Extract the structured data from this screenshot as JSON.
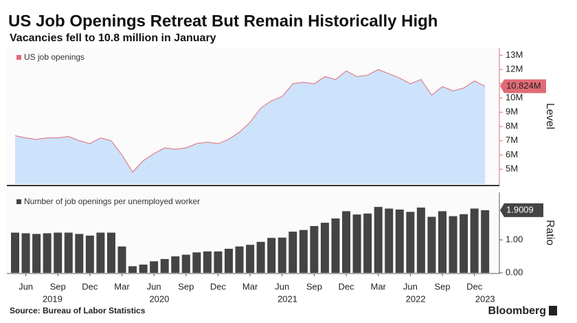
{
  "chart_data": [
    {
      "type": "area",
      "title": "US Job Openings Retreat But Remain Historically High",
      "subtitle": "Vacancies fell to 10.8 million in January",
      "axis_label": "Level",
      "x": [
        "2019-05",
        "2019-06",
        "2019-07",
        "2019-08",
        "2019-09",
        "2019-10",
        "2019-11",
        "2019-12",
        "2020-01",
        "2020-02",
        "2020-03",
        "2020-04",
        "2020-05",
        "2020-06",
        "2020-07",
        "2020-08",
        "2020-09",
        "2020-10",
        "2020-11",
        "2020-12",
        "2021-01",
        "2021-02",
        "2021-03",
        "2021-04",
        "2021-05",
        "2021-06",
        "2021-07",
        "2021-08",
        "2021-09",
        "2021-10",
        "2021-11",
        "2021-12",
        "2022-01",
        "2022-02",
        "2022-03",
        "2022-04",
        "2022-05",
        "2022-06",
        "2022-07",
        "2022-08",
        "2022-09",
        "2022-10",
        "2022-11",
        "2022-12",
        "2023-01"
      ],
      "series": [
        {
          "name": "US job openings",
          "color": "#e06b75",
          "fill": "#cde2fb",
          "values": [
            7.35,
            7.2,
            7.1,
            7.2,
            7.2,
            7.3,
            7.0,
            6.8,
            7.2,
            7.0,
            6.0,
            4.8,
            5.6,
            6.1,
            6.5,
            6.4,
            6.5,
            6.8,
            6.9,
            6.8,
            7.1,
            7.6,
            8.3,
            9.3,
            9.8,
            10.1,
            11.0,
            11.1,
            11.0,
            11.5,
            11.3,
            11.9,
            11.5,
            11.6,
            12.0,
            11.7,
            11.4,
            11.0,
            11.3,
            10.2,
            10.8,
            10.5,
            10.7,
            11.2,
            10.824
          ],
          "last_value_label": "10.824M"
        }
      ],
      "ylim": [
        3.95,
        13.5
      ],
      "yticks": [
        {
          "value": 5,
          "label": "5M"
        },
        {
          "value": 6,
          "label": "6M"
        },
        {
          "value": 7,
          "label": "7M"
        },
        {
          "value": 8,
          "label": "8M"
        },
        {
          "value": 9,
          "label": "9M"
        },
        {
          "value": 10,
          "label": "10M"
        },
        {
          "value": 11,
          "label": "11M"
        },
        {
          "value": 12,
          "label": "12M"
        },
        {
          "value": 13,
          "label": "13M"
        }
      ],
      "axis_side": "right",
      "legend": "top-left"
    },
    {
      "type": "bar",
      "axis_label": "Ratio",
      "series": [
        {
          "name": "Number of job openings per unemployed worker",
          "color": "#444444",
          "values": [
            1.22,
            1.2,
            1.18,
            1.2,
            1.22,
            1.22,
            1.18,
            1.13,
            1.22,
            1.22,
            0.8,
            0.2,
            0.25,
            0.35,
            0.42,
            0.5,
            0.55,
            0.62,
            0.65,
            0.65,
            0.73,
            0.8,
            0.85,
            0.94,
            1.06,
            1.07,
            1.25,
            1.3,
            1.42,
            1.52,
            1.65,
            1.87,
            1.77,
            1.8,
            2.0,
            1.95,
            1.92,
            1.85,
            1.98,
            1.7,
            1.87,
            1.72,
            1.78,
            1.95,
            1.9009
          ]
        }
      ],
      "ylim": [
        0,
        2.44
      ],
      "yticks": [
        {
          "value": 0,
          "label": "0.00"
        },
        {
          "value": 1,
          "label": "1.00"
        }
      ],
      "xticks": [
        {
          "value": "2019-06",
          "label": "Jun"
        },
        {
          "value": "2019-09",
          "label": "Sep"
        },
        {
          "value": "2019-12",
          "label": "Dec"
        },
        {
          "value": "2020-03",
          "label": "Mar"
        },
        {
          "value": "2020-06",
          "label": "Jun"
        },
        {
          "value": "2020-09",
          "label": "Sep"
        },
        {
          "value": "2020-12",
          "label": "Dec"
        },
        {
          "value": "2021-03",
          "label": "Mar"
        },
        {
          "value": "2021-06",
          "label": "Jun"
        },
        {
          "value": "2021-09",
          "label": "Sep"
        },
        {
          "value": "2021-12",
          "label": "Dec"
        },
        {
          "value": "2022-03",
          "label": "Mar"
        },
        {
          "value": "2022-06",
          "label": "Jun"
        },
        {
          "value": "2022-09",
          "label": "Sep"
        },
        {
          "value": "2022-12",
          "label": "Dec"
        }
      ],
      "xyears": [
        "2019",
        "2020",
        "2021",
        "2022",
        "2023"
      ],
      "axis_side": "right",
      "legend": "top-left"
    }
  ],
  "footer": {
    "source": "Source: Bureau of Labor Statistics",
    "brand": "Bloomberg"
  }
}
